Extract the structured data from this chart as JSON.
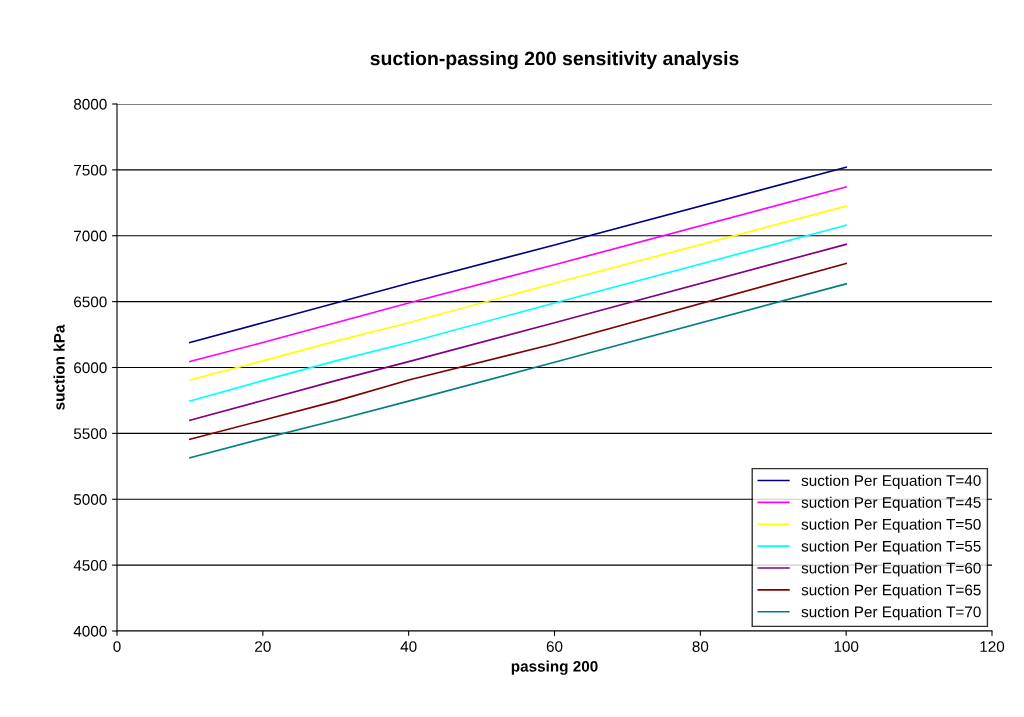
{
  "chart_data": {
    "type": "line",
    "title": "suction-passing 200 sensitivity analysis",
    "xlabel": "passing 200",
    "ylabel": "suction kPa",
    "x": [
      10,
      20,
      30,
      40,
      60,
      100
    ],
    "series": [
      {
        "name": "suction Per Equation T=40",
        "color": "#000080",
        "values": [
          6190,
          6340,
          6490,
          6640,
          6930,
          7520
        ]
      },
      {
        "name": "suction Per Equation T=45",
        "color": "#ff00ff",
        "values": [
          6045,
          6190,
          6340,
          6490,
          6780,
          7370
        ]
      },
      {
        "name": "suction Per Equation T=50",
        "color": "#ffff00",
        "values": [
          5905,
          6050,
          6200,
          6340,
          6640,
          7225
        ]
      },
      {
        "name": "suction Per Equation T=55",
        "color": "#00ffff",
        "values": [
          5745,
          5900,
          6050,
          6190,
          6490,
          7080
        ]
      },
      {
        "name": "suction Per Equation T=60",
        "color": "#800080",
        "values": [
          5600,
          5750,
          5900,
          6045,
          6340,
          6935
        ]
      },
      {
        "name": "suction Per Equation T=65",
        "color": "#800000",
        "values": [
          5455,
          5600,
          5745,
          5905,
          6180,
          6790
        ]
      },
      {
        "name": "suction Per Equation T=70",
        "color": "#008080",
        "values": [
          5315,
          5460,
          5600,
          5745,
          6040,
          6635
        ]
      }
    ],
    "xlim": [
      0,
      120
    ],
    "xticks": [
      0,
      20,
      40,
      60,
      80,
      100,
      120
    ],
    "ylim": [
      4000,
      8000
    ],
    "yticks": [
      4000,
      4500,
      5000,
      5500,
      6000,
      6500,
      7000,
      7500,
      8000
    ],
    "grid": "y",
    "legend": "bottom right",
    "marker": "none",
    "line_style": "solid"
  }
}
